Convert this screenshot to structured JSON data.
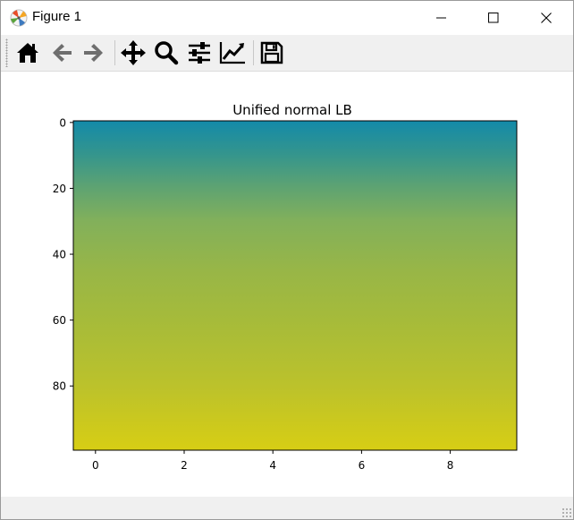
{
  "window": {
    "title": "Figure 1"
  },
  "toolbar": {
    "buttons": [
      {
        "name": "home",
        "icon": "home-icon"
      },
      {
        "name": "back",
        "icon": "arrow-left-icon"
      },
      {
        "name": "forward",
        "icon": "arrow-right-icon"
      },
      {
        "name": "pan",
        "icon": "move-icon"
      },
      {
        "name": "zoom",
        "icon": "magnifier-icon"
      },
      {
        "name": "configure-subplots",
        "icon": "sliders-icon"
      },
      {
        "name": "edit-axis",
        "icon": "line-chart-icon"
      },
      {
        "name": "save",
        "icon": "floppy-disk-icon"
      }
    ]
  },
  "chart_data": {
    "type": "heatmap",
    "title": "Unified normal LB",
    "xlabel": "",
    "ylabel": "",
    "x_ticks": [
      0,
      2,
      4,
      6,
      8
    ],
    "y_ticks": [
      0,
      20,
      40,
      60,
      80
    ],
    "xlim": [
      -0.5,
      9.5
    ],
    "ylim": [
      99.5,
      -0.5
    ],
    "rows": 100,
    "cols": 10,
    "y_inverted": true,
    "values_vary_along": "rows",
    "colormap_stops": [
      {
        "row": 0,
        "color": "#138aa9"
      },
      {
        "row": 10,
        "color": "#34958d"
      },
      {
        "row": 20,
        "color": "#5ea372"
      },
      {
        "row": 30,
        "color": "#82b05b"
      },
      {
        "row": 45,
        "color": "#98b647"
      },
      {
        "row": 60,
        "color": "#a6bb3a"
      },
      {
        "row": 80,
        "color": "#bcc22b"
      },
      {
        "row": 99,
        "color": "#d7ce14"
      }
    ]
  }
}
